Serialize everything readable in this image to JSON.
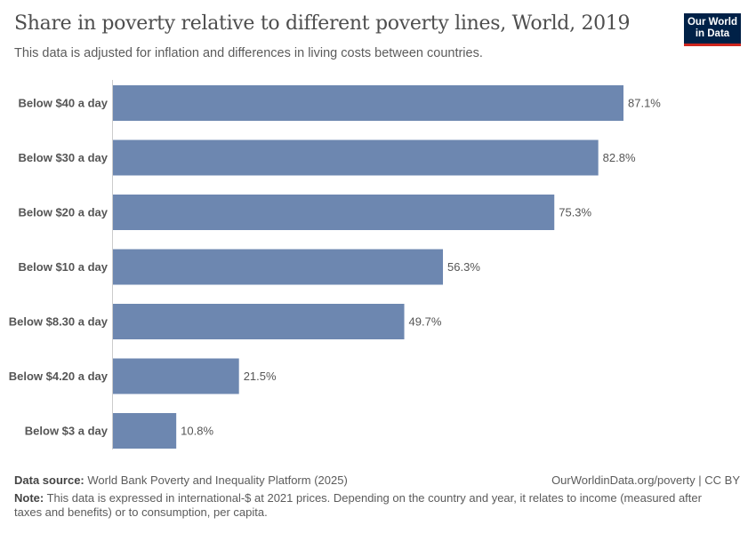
{
  "title": "Share in poverty relative to different poverty lines, World, 2019",
  "subtitle": "This data is adjusted for inflation and differences in living costs between countries.",
  "logo": {
    "line1": "Our World",
    "line2": "in Data"
  },
  "footer": {
    "source_label": "Data source:",
    "source": "World Bank Poverty and Inequality Platform (2025)",
    "url": "OurWorldinData.org/poverty | CC BY",
    "note_label": "Note:",
    "note": "This data is expressed in international-$ at 2021 prices. Depending on the country and year, it relates to income (measured after taxes and benefits) or to consumption, per capita."
  },
  "chart_data": {
    "type": "bar",
    "orientation": "horizontal",
    "categories": [
      "Below $40 a day",
      "Below $30 a day",
      "Below $20 a day",
      "Below $10 a day",
      "Below $8.30 a day",
      "Below $4.20 a day",
      "Below $3 a day"
    ],
    "values": [
      87.1,
      82.8,
      75.3,
      56.3,
      49.7,
      21.5,
      10.8
    ],
    "labels": [
      "87.1%",
      "82.8%",
      "75.3%",
      "56.3%",
      "49.7%",
      "21.5%",
      "10.8%"
    ],
    "unit": "%",
    "bar_color": "#6d87b0",
    "grid": false
  }
}
